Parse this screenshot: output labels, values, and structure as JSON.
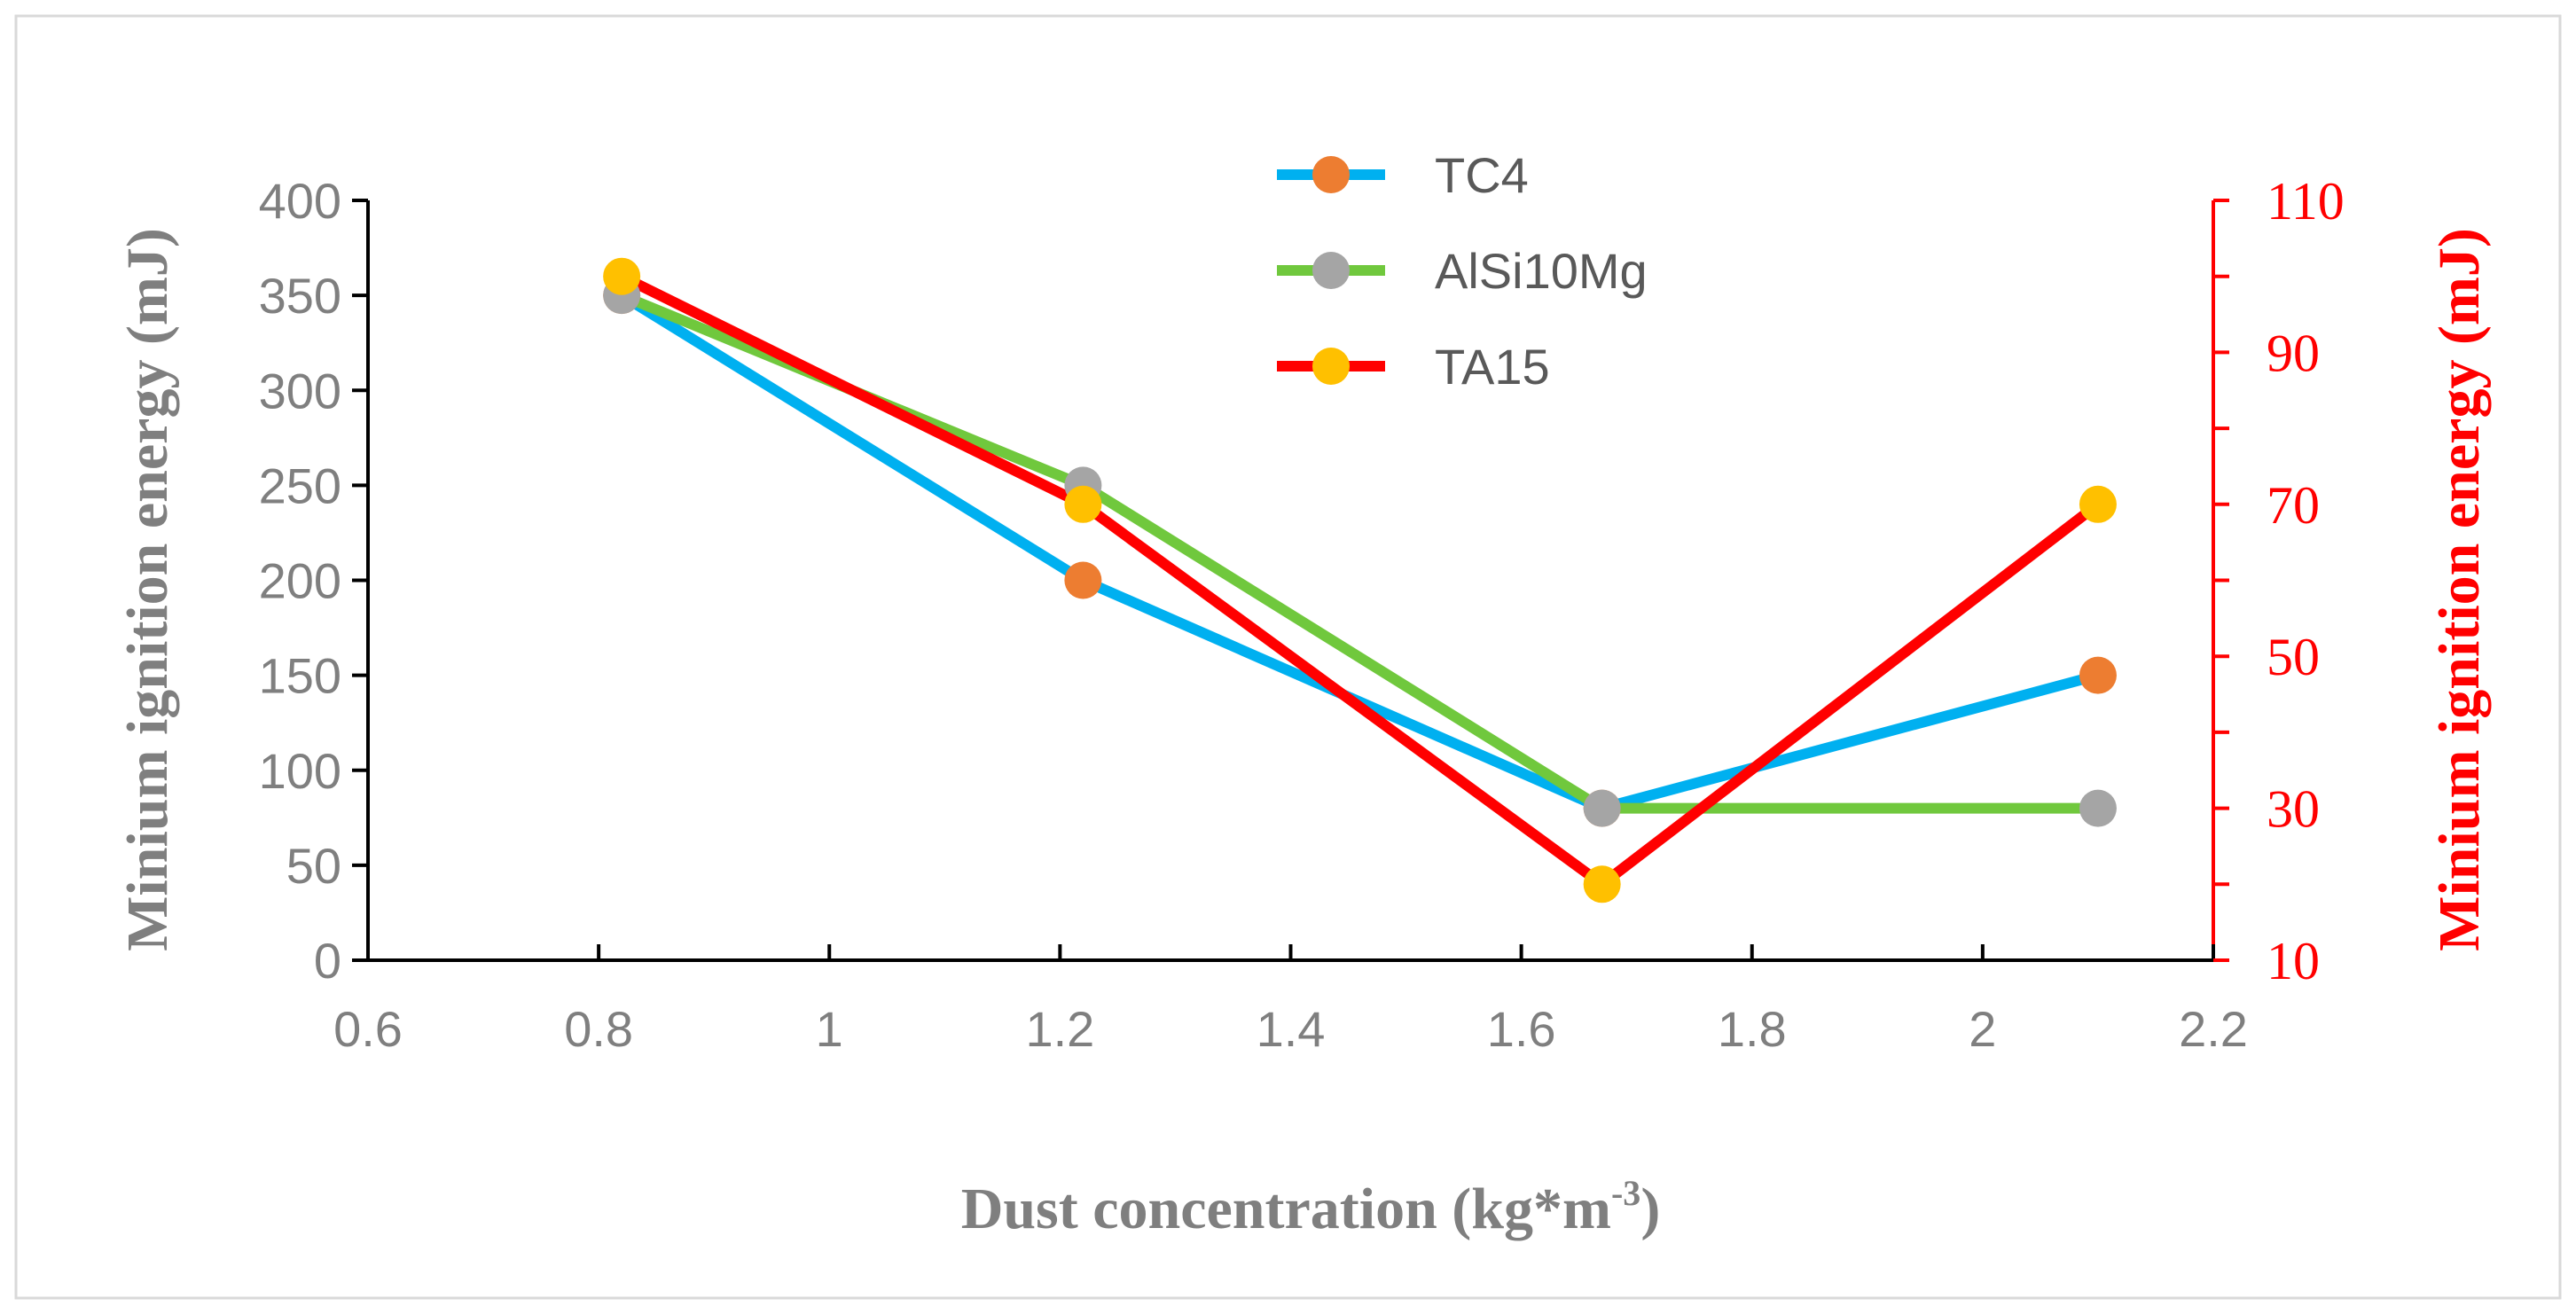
{
  "chart_data": {
    "type": "line",
    "title": "",
    "x_values": [
      0.82,
      1.22,
      1.67,
      2.1
    ],
    "x_axis": {
      "label": "Dust concentration (kg*m",
      "label_superscript": "-3",
      "label_close": ")",
      "range": [
        0.6,
        2.2
      ],
      "ticks": [
        "0.6",
        "0.8",
        "1",
        "1.2",
        "1.4",
        "1.6",
        "1.8",
        "2",
        "2.2"
      ]
    },
    "y_axis_left": {
      "label": "Minium ignition energy (mJ)",
      "range": [
        0,
        400
      ],
      "ticks": [
        "0",
        "50",
        "100",
        "150",
        "200",
        "250",
        "300",
        "350",
        "400"
      ]
    },
    "y_axis_right": {
      "label": "Minium ignition energy (mJ)",
      "range": [
        10,
        110
      ],
      "ticks": [
        "10",
        "30",
        "50",
        "70",
        "90",
        "110"
      ]
    },
    "series": [
      {
        "name": "TC4",
        "axis": "left",
        "values": [
          350,
          200,
          80,
          150
        ],
        "line_color": "#00b0f0",
        "marker_color": "#ed7d31"
      },
      {
        "name": "AlSi10Mg",
        "axis": "left",
        "values": [
          350,
          250,
          80,
          80
        ],
        "line_color": "#70c83d",
        "marker_color": "#a5a5a5"
      },
      {
        "name": "TA15",
        "axis": "right",
        "values": [
          100,
          70,
          20,
          70
        ],
        "line_color": "#ff0000",
        "marker_color": "#ffc000"
      }
    ],
    "legend_position": "top-center"
  }
}
